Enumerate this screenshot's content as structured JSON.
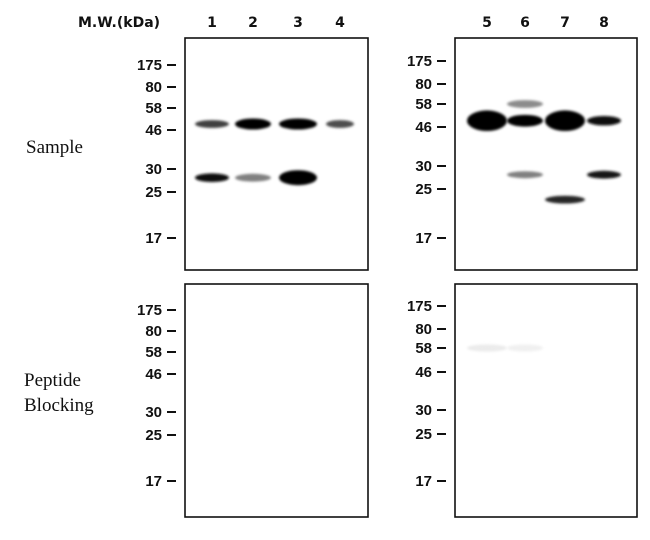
{
  "header": {
    "mw_label": "M.W.(kDa)"
  },
  "row_labels": {
    "sample": "Sample",
    "blocking_line1": "Peptide",
    "blocking_line2": "Blocking"
  },
  "lanes": [
    "1",
    "2",
    "3",
    "4",
    "5",
    "6",
    "7",
    "8"
  ],
  "markers": [
    "175",
    "80",
    "58",
    "46",
    "30",
    "25",
    "17"
  ],
  "panels": [
    {
      "id": "sample-left",
      "lanes": [
        "1",
        "2",
        "3",
        "4"
      ],
      "bands": [
        {
          "lane": "1",
          "kda": 49,
          "intensity": 0.75,
          "thickness": 0.6
        },
        {
          "lane": "2",
          "kda": 49,
          "intensity": 1.0,
          "thickness": 1.0
        },
        {
          "lane": "3",
          "kda": 49,
          "intensity": 1.0,
          "thickness": 1.0
        },
        {
          "lane": "4",
          "kda": 49,
          "intensity": 0.7,
          "thickness": 0.6
        },
        {
          "lane": "1",
          "kda": 28,
          "intensity": 0.95,
          "thickness": 0.7
        },
        {
          "lane": "2",
          "kda": 28,
          "intensity": 0.5,
          "thickness": 0.6
        },
        {
          "lane": "3",
          "kda": 28,
          "intensity": 1.0,
          "thickness": 1.5
        }
      ]
    },
    {
      "id": "sample-right",
      "lanes": [
        "5",
        "6",
        "7",
        "8"
      ],
      "bands": [
        {
          "lane": "5",
          "kda": 49,
          "intensity": 1.0,
          "thickness": 2.2
        },
        {
          "lane": "6",
          "kda": 49,
          "intensity": 1.0,
          "thickness": 1.1
        },
        {
          "lane": "7",
          "kda": 49,
          "intensity": 1.0,
          "thickness": 2.2
        },
        {
          "lane": "8",
          "kda": 49,
          "intensity": 0.95,
          "thickness": 0.8
        },
        {
          "lane": "6",
          "kda": 58,
          "intensity": 0.45,
          "thickness": 0.6
        },
        {
          "lane": "6",
          "kda": 28,
          "intensity": 0.5,
          "thickness": 0.5
        },
        {
          "lane": "8",
          "kda": 28,
          "intensity": 0.9,
          "thickness": 0.6
        },
        {
          "lane": "7",
          "kda": 23,
          "intensity": 0.85,
          "thickness": 0.6
        }
      ]
    },
    {
      "id": "blocking-left",
      "lanes": [
        "1",
        "2",
        "3",
        "4"
      ],
      "bands": []
    },
    {
      "id": "blocking-right",
      "lanes": [
        "5",
        "6",
        "7",
        "8"
      ],
      "bands": [
        {
          "lane": "5",
          "kda": 58,
          "intensity": 0.08,
          "thickness": 0.5
        },
        {
          "lane": "6",
          "kda": 58,
          "intensity": 0.06,
          "thickness": 0.5
        }
      ]
    }
  ]
}
